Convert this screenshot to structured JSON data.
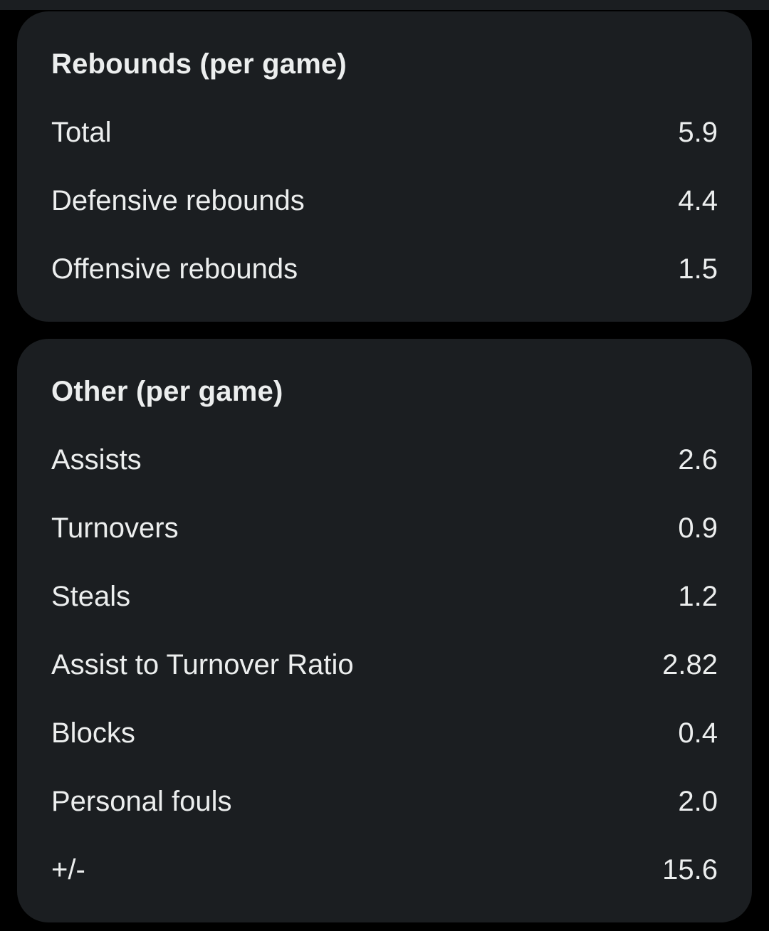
{
  "sections": [
    {
      "title": "Rebounds (per game)",
      "rows": [
        {
          "label": "Total",
          "value": "5.9"
        },
        {
          "label": "Defensive rebounds",
          "value": "4.4"
        },
        {
          "label": "Offensive rebounds",
          "value": "1.5"
        }
      ]
    },
    {
      "title": "Other (per game)",
      "rows": [
        {
          "label": "Assists",
          "value": "2.6"
        },
        {
          "label": "Turnovers",
          "value": "0.9"
        },
        {
          "label": "Steals",
          "value": "1.2"
        },
        {
          "label": "Assist to Turnover Ratio",
          "value": "2.82"
        },
        {
          "label": "Blocks",
          "value": "0.4"
        },
        {
          "label": "Personal fouls",
          "value": "2.0"
        },
        {
          "label": "+/-",
          "value": "15.6"
        }
      ]
    }
  ],
  "colors": {
    "background": "#000000",
    "card": "#1b1e21",
    "text": "#eceeee"
  }
}
